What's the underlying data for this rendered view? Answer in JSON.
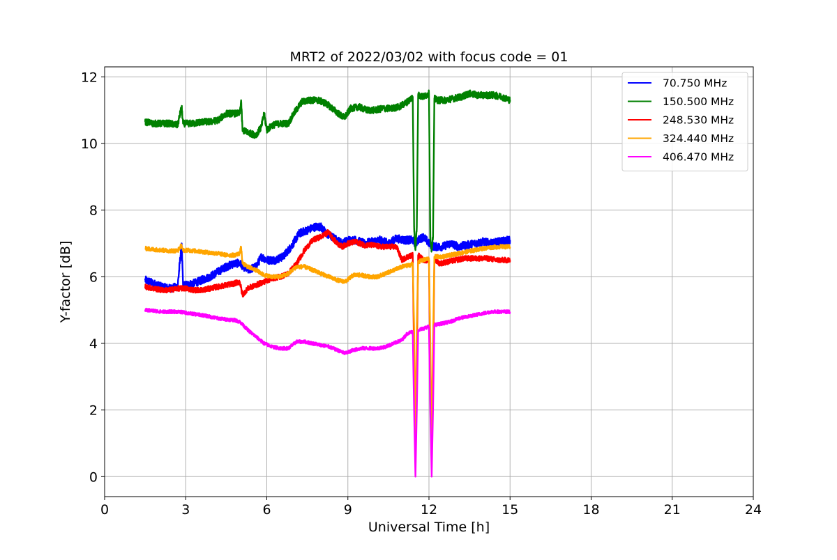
{
  "chart_data": {
    "type": "line",
    "title": "MRT2 of 2022/03/02 with focus code = 01",
    "xlabel": "Universal Time [h]",
    "ylabel": "Y-factor [dB]",
    "xlim": [
      0,
      24
    ],
    "ylim": [
      -0.6,
      12.3
    ],
    "xticks": [
      0,
      3,
      6,
      9,
      12,
      15,
      18,
      21,
      24
    ],
    "yticks": [
      0,
      2,
      4,
      6,
      8,
      10,
      12
    ],
    "grid": true,
    "legend_position": "top-right",
    "series": [
      {
        "name": " 70.750 MHz",
        "color": "#0000ff",
        "noise": 0.12,
        "x": [
          1.5,
          1.8,
          2.1,
          2.4,
          2.7,
          2.85,
          2.9,
          3.0,
          3.3,
          3.6,
          3.9,
          4.2,
          4.5,
          4.8,
          5.0,
          5.3,
          5.6,
          5.8,
          6.0,
          6.3,
          6.6,
          6.9,
          7.2,
          7.5,
          7.8,
          8.0,
          8.2,
          8.4,
          8.6,
          8.8,
          9.0,
          9.3,
          9.6,
          9.9,
          10.2,
          10.5,
          10.8,
          11.1,
          11.4,
          11.5,
          11.6,
          11.8,
          12.0,
          12.2,
          12.5,
          12.8,
          13.1,
          13.4,
          13.7,
          14.0,
          14.3,
          14.6,
          15.0
        ],
        "y": [
          5.9,
          5.8,
          5.7,
          5.65,
          5.7,
          7.0,
          5.75,
          5.75,
          5.8,
          5.9,
          6.0,
          6.15,
          6.3,
          6.4,
          6.4,
          6.2,
          6.3,
          6.6,
          6.5,
          6.5,
          6.6,
          6.9,
          7.3,
          7.4,
          7.5,
          7.5,
          7.3,
          7.2,
          7.1,
          7.0,
          7.1,
          7.1,
          7.0,
          7.05,
          7.1,
          7.0,
          7.15,
          7.1,
          7.1,
          7.0,
          7.1,
          7.2,
          7.0,
          6.9,
          6.9,
          7.0,
          6.9,
          6.95,
          7.0,
          7.05,
          7.0,
          7.05,
          7.1
        ]
      },
      {
        "name": "150.500 MHz",
        "color": "#008000",
        "noise": 0.1,
        "x": [
          1.5,
          1.8,
          2.1,
          2.4,
          2.7,
          2.85,
          2.9,
          3.0,
          3.3,
          3.6,
          3.9,
          4.2,
          4.5,
          4.8,
          5.0,
          5.05,
          5.1,
          5.4,
          5.6,
          5.8,
          5.9,
          6.0,
          6.2,
          6.5,
          6.8,
          7.0,
          7.3,
          7.6,
          7.9,
          8.2,
          8.5,
          8.8,
          8.9,
          9.1,
          9.4,
          9.7,
          10.0,
          10.3,
          10.6,
          10.9,
          11.2,
          11.4,
          11.45,
          11.5,
          11.55,
          11.6,
          11.8,
          12.0,
          12.05,
          12.1,
          12.15,
          12.2,
          12.3,
          12.6,
          12.9,
          13.2,
          13.5,
          13.8,
          14.1,
          14.4,
          14.7,
          15.0
        ],
        "y": [
          10.65,
          10.6,
          10.6,
          10.6,
          10.55,
          11.1,
          10.6,
          10.6,
          10.6,
          10.65,
          10.65,
          10.7,
          10.9,
          10.9,
          10.9,
          11.3,
          10.4,
          10.3,
          10.25,
          10.5,
          10.9,
          10.4,
          10.55,
          10.6,
          10.6,
          10.9,
          11.25,
          11.3,
          11.3,
          11.2,
          11.0,
          10.8,
          10.8,
          11.05,
          11.1,
          11.0,
          11.0,
          11.05,
          11.05,
          11.1,
          11.25,
          11.4,
          7.5,
          6.8,
          7.5,
          11.45,
          11.4,
          11.5,
          7.2,
          6.8,
          7.2,
          11.35,
          11.3,
          11.3,
          11.35,
          11.4,
          11.5,
          11.45,
          11.45,
          11.45,
          11.4,
          11.3
        ]
      },
      {
        "name": "248.530 MHz",
        "color": "#ff0000",
        "noise": 0.08,
        "x": [
          1.5,
          1.8,
          2.1,
          2.4,
          2.7,
          3.0,
          3.3,
          3.6,
          3.9,
          4.2,
          4.5,
          4.8,
          5.0,
          5.1,
          5.3,
          5.6,
          5.9,
          6.2,
          6.5,
          6.8,
          7.1,
          7.4,
          7.7,
          8.0,
          8.3,
          8.4,
          8.6,
          8.8,
          9.0,
          9.3,
          9.6,
          9.9,
          10.2,
          10.5,
          10.8,
          11.0,
          11.2,
          11.4,
          11.45,
          11.5,
          11.55,
          11.6,
          11.8,
          12.0,
          12.05,
          12.1,
          12.15,
          12.2,
          12.4,
          12.7,
          13.0,
          13.3,
          13.6,
          13.9,
          14.2,
          14.5,
          14.8,
          15.0
        ],
        "y": [
          5.7,
          5.65,
          5.6,
          5.6,
          5.65,
          5.65,
          5.6,
          5.6,
          5.65,
          5.7,
          5.75,
          5.8,
          5.85,
          5.45,
          5.65,
          5.75,
          5.85,
          5.95,
          6.0,
          6.1,
          6.4,
          6.8,
          7.1,
          7.2,
          7.35,
          7.2,
          7.0,
          6.9,
          7.0,
          7.05,
          6.95,
          6.95,
          6.9,
          6.9,
          6.9,
          6.5,
          6.6,
          6.65,
          3.5,
          0.5,
          3.5,
          6.65,
          6.5,
          6.5,
          3.0,
          0.5,
          3.0,
          6.5,
          6.4,
          6.45,
          6.5,
          6.55,
          6.55,
          6.55,
          6.55,
          6.5,
          6.5,
          6.5
        ]
      },
      {
        "name": "324.440 MHz",
        "color": "#ffa500",
        "noise": 0.06,
        "x": [
          1.5,
          1.8,
          2.1,
          2.4,
          2.7,
          2.85,
          2.9,
          3.0,
          3.3,
          3.6,
          3.9,
          4.2,
          4.5,
          4.8,
          5.0,
          5.05,
          5.1,
          5.3,
          5.6,
          5.9,
          6.2,
          6.5,
          6.8,
          7.1,
          7.4,
          7.7,
          8.0,
          8.3,
          8.6,
          8.9,
          9.2,
          9.5,
          9.8,
          10.1,
          10.4,
          10.7,
          11.0,
          11.3,
          11.4,
          11.45,
          11.5,
          11.55,
          11.6,
          11.8,
          12.0,
          12.05,
          12.1,
          12.15,
          12.2,
          12.5,
          12.8,
          13.1,
          13.4,
          13.7,
          14.0,
          14.3,
          14.6,
          15.0
        ],
        "y": [
          6.85,
          6.82,
          6.8,
          6.78,
          6.78,
          6.95,
          6.78,
          6.8,
          6.78,
          6.75,
          6.72,
          6.7,
          6.65,
          6.65,
          6.7,
          6.9,
          6.4,
          6.3,
          6.2,
          6.05,
          6.0,
          6.0,
          6.1,
          6.3,
          6.3,
          6.2,
          6.1,
          6.0,
          5.9,
          5.85,
          6.05,
          6.05,
          6.0,
          6.0,
          6.1,
          6.2,
          6.3,
          6.35,
          6.4,
          4.5,
          1.0,
          4.5,
          6.45,
          6.5,
          6.55,
          4.0,
          1.0,
          4.0,
          6.6,
          6.6,
          6.65,
          6.7,
          6.75,
          6.8,
          6.85,
          6.88,
          6.9,
          6.9
        ]
      },
      {
        "name": "406.470 MHz",
        "color": "#ff00ff",
        "noise": 0.05,
        "x": [
          1.5,
          1.8,
          2.1,
          2.4,
          2.7,
          3.0,
          3.3,
          3.6,
          3.9,
          4.2,
          4.5,
          4.8,
          5.0,
          5.3,
          5.6,
          5.9,
          6.2,
          6.5,
          6.8,
          7.1,
          7.4,
          7.7,
          8.0,
          8.3,
          8.6,
          8.9,
          9.2,
          9.5,
          9.8,
          10.1,
          10.4,
          10.7,
          11.0,
          11.2,
          11.4,
          11.45,
          11.5,
          11.55,
          11.6,
          11.8,
          12.0,
          12.05,
          12.1,
          12.15,
          12.2,
          12.5,
          12.8,
          13.1,
          13.4,
          13.7,
          14.0,
          14.3,
          14.6,
          15.0
        ],
        "y": [
          5.0,
          4.98,
          4.95,
          4.95,
          4.95,
          4.92,
          4.88,
          4.85,
          4.8,
          4.75,
          4.72,
          4.7,
          4.65,
          4.4,
          4.2,
          4.0,
          3.9,
          3.85,
          3.85,
          4.05,
          4.05,
          4.0,
          3.95,
          3.9,
          3.8,
          3.7,
          3.8,
          3.85,
          3.85,
          3.85,
          3.9,
          4.0,
          4.1,
          4.3,
          4.35,
          2.0,
          0.0,
          2.0,
          4.4,
          4.45,
          4.5,
          2.0,
          0.0,
          2.0,
          4.55,
          4.6,
          4.65,
          4.75,
          4.8,
          4.85,
          4.9,
          4.95,
          4.95,
          4.95
        ]
      }
    ]
  }
}
